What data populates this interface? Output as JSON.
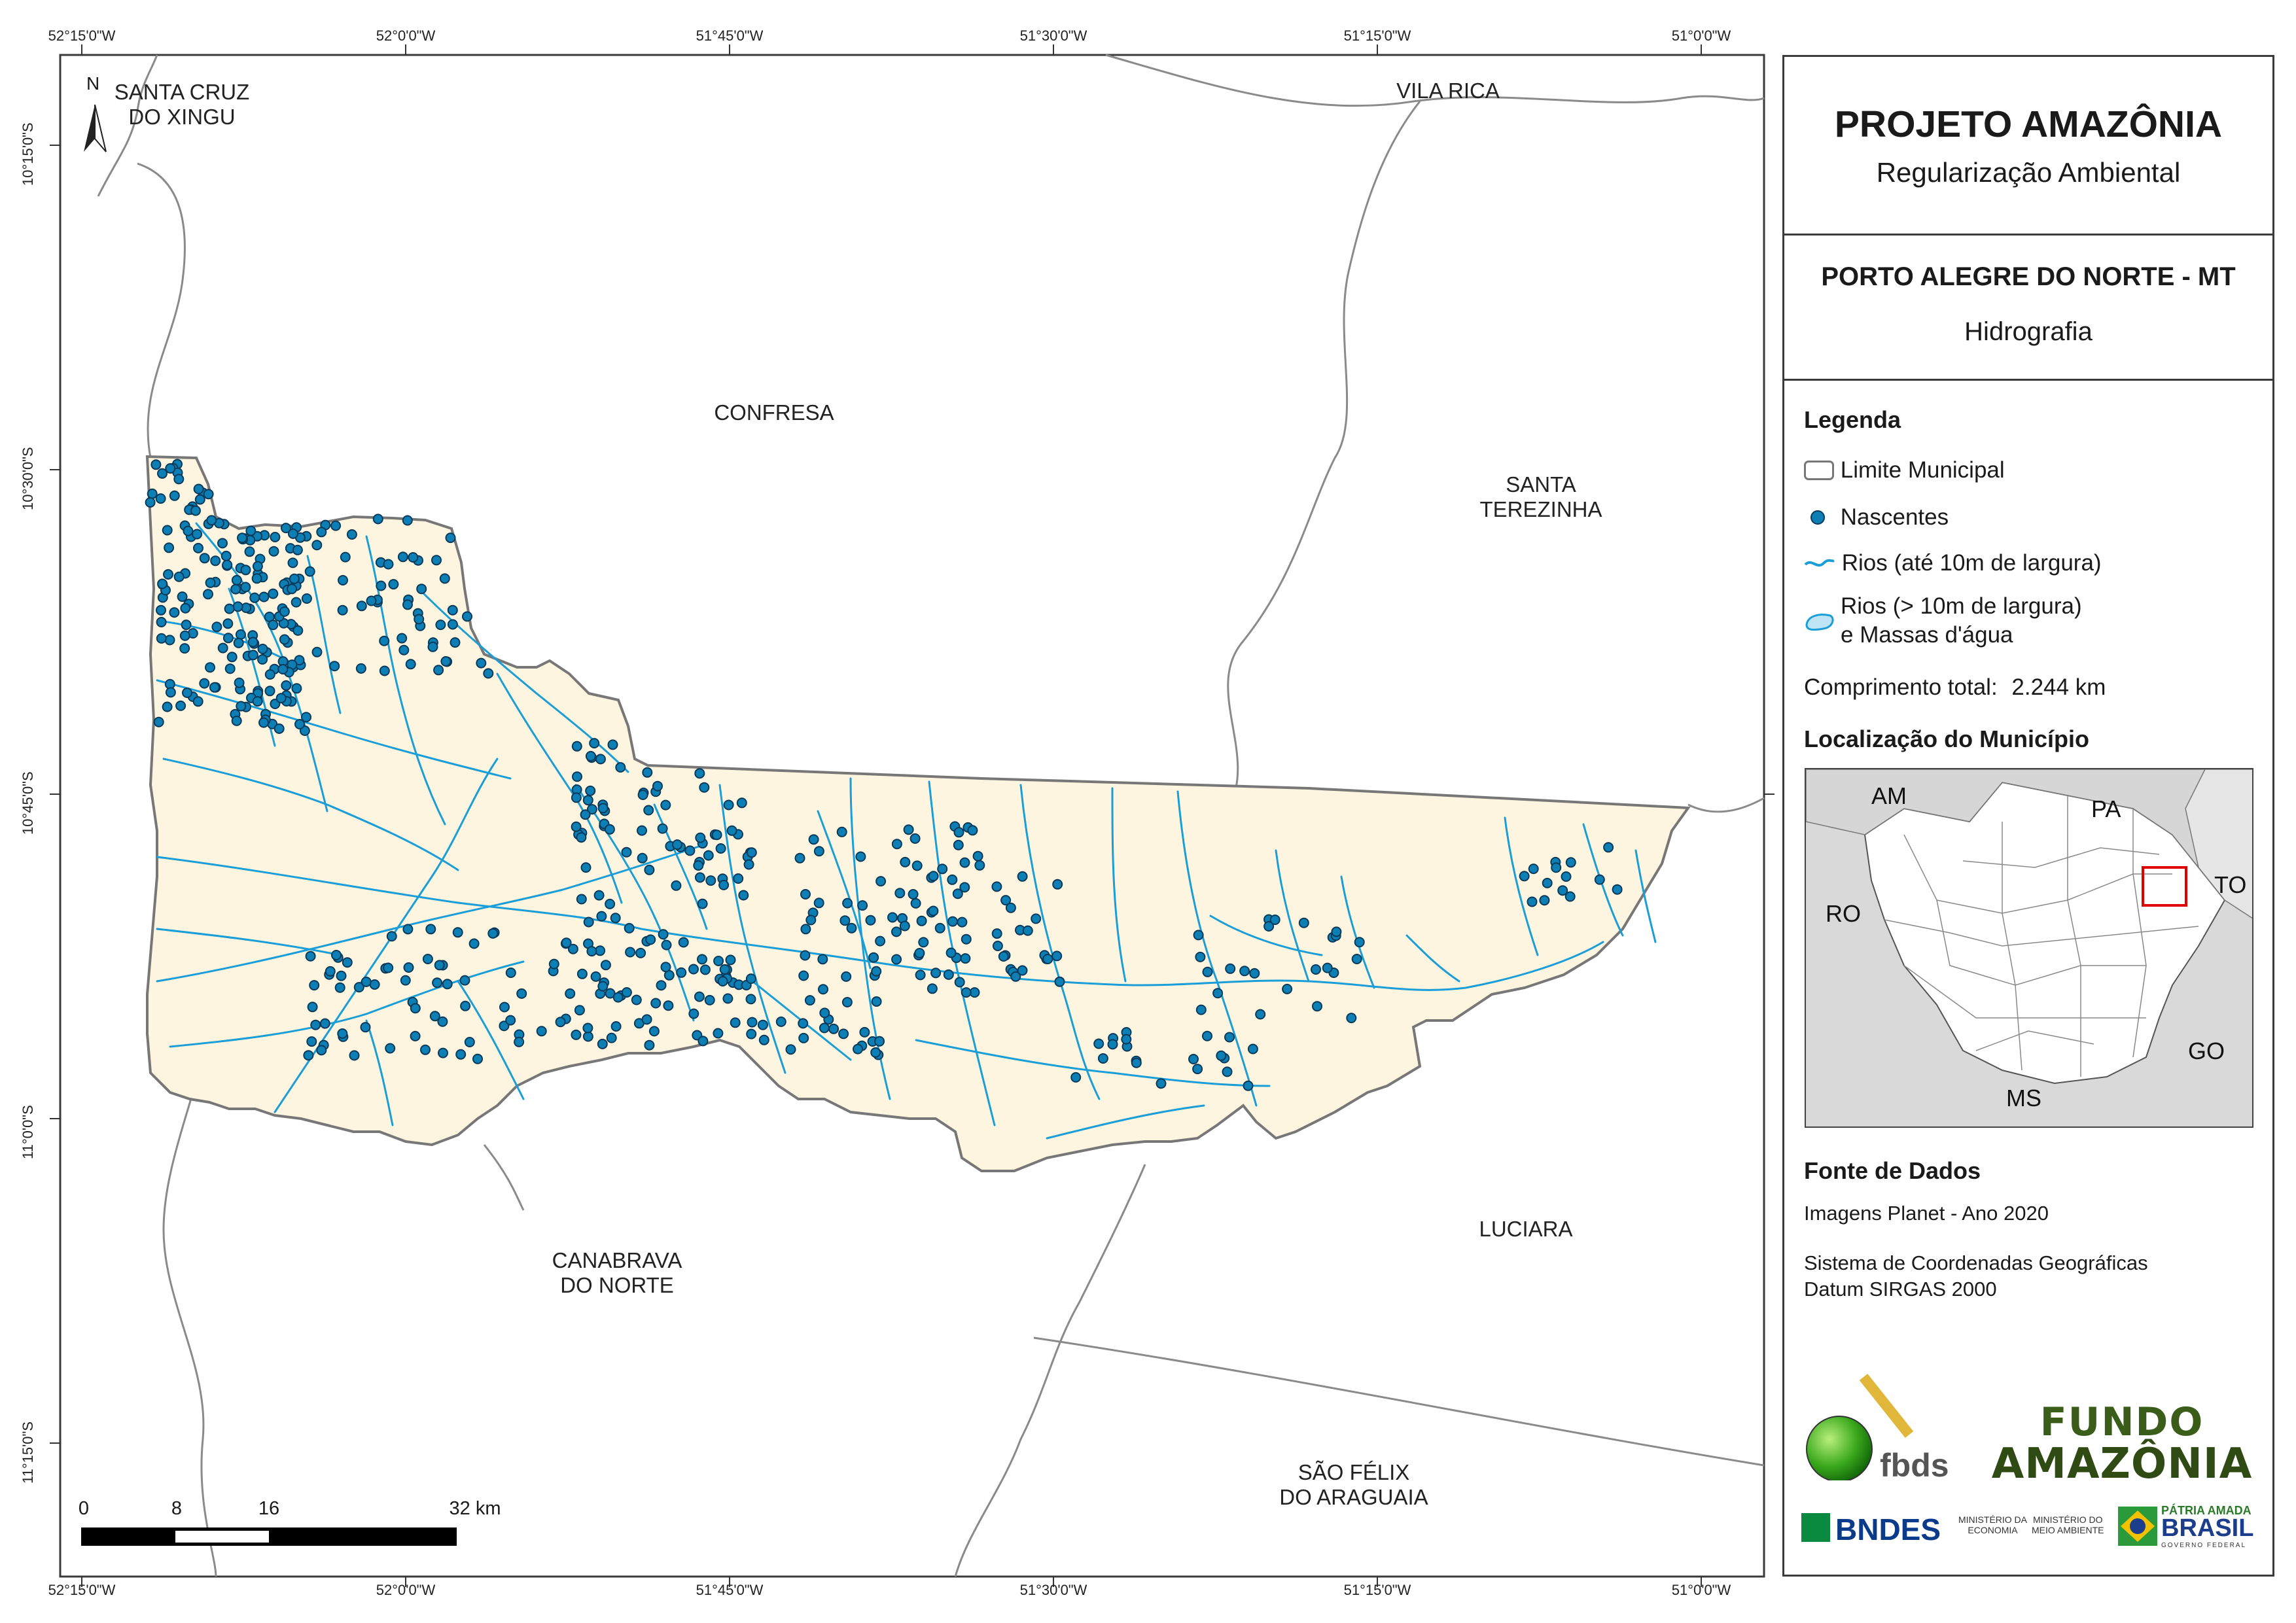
{
  "map": {
    "top_ticks": [
      "52°15'0\"W",
      "52°0'0\"W",
      "51°45'0\"W",
      "51°30'0\"W",
      "51°15'0\"W",
      "51°0'0\"W"
    ],
    "bottom_ticks": [
      "52°15'0\"W",
      "52°0'0\"W",
      "51°45'0\"W",
      "51°30'0\"W",
      "51°15'0\"W",
      "51°0'0\"W"
    ],
    "left_ticks": [
      "10°15'0\"S",
      "10°30'0\"S",
      "10°45'0\"S",
      "11°0'0\"S",
      "11°15'0\"S"
    ],
    "north_label": "N",
    "neighbors": [
      {
        "lines": [
          "SANTA CRUZ",
          "DO XINGU"
        ]
      },
      {
        "lines": [
          "VILA RICA"
        ]
      },
      {
        "lines": [
          "CONFRESA"
        ]
      },
      {
        "lines": [
          "SANTA",
          "TEREZINHA"
        ]
      },
      {
        "lines": [
          "CANABRAVA",
          "DO NORTE"
        ]
      },
      {
        "lines": [
          "LUCIARA"
        ]
      },
      {
        "lines": [
          "SÃO FÉLIX",
          "DO ARAGUAIA"
        ]
      }
    ],
    "scale": {
      "labels": [
        "0",
        "8",
        "16",
        "32 km"
      ]
    },
    "colors": {
      "municipality_fill": "#fdf5e0",
      "river": "#1a9ed8",
      "spring": "#0d7fb4",
      "boundary": "#777777"
    }
  },
  "panel": {
    "project_title": "PROJETO AMAZÔNIA",
    "project_subtitle": "Regularização Ambiental",
    "municipality": "PORTO ALEGRE DO NORTE - MT",
    "theme": "Hidrografia",
    "legend": {
      "title": "Legenda",
      "items": [
        "Limite Municipal",
        "Nascentes",
        "Rios (até 10m de largura)",
        "Rios (> 10m de largura)",
        "e Massas d'água"
      ],
      "total_length_label": "Comprimento total:",
      "total_length_value": "2.244 km"
    },
    "location": {
      "title": "Localização do Município",
      "labels": [
        "AM",
        "PA",
        "RO",
        "TO",
        "GO",
        "MS"
      ]
    },
    "sources": {
      "title": "Fonte de Dados",
      "lines": [
        "Imagens Planet - Ano 2020",
        "Sistema de Coordenadas Geográficas",
        "Datum SIRGAS 2000"
      ]
    },
    "logos": {
      "fbds": "fbds",
      "fundo_line1": "FUNDO",
      "fundo_line2": "AMAZÔNIA",
      "bndes": "BNDES",
      "min_economia": [
        "MINISTÉRIO DA",
        "ECONOMIA"
      ],
      "min_meio_ambiente": [
        "MINISTÉRIO DO",
        "MEIO AMBIENTE"
      ],
      "patria_line1": "PÁTRIA AMADA",
      "patria_line2": "BRASIL",
      "governo": "GOVERNO FEDERAL"
    }
  }
}
